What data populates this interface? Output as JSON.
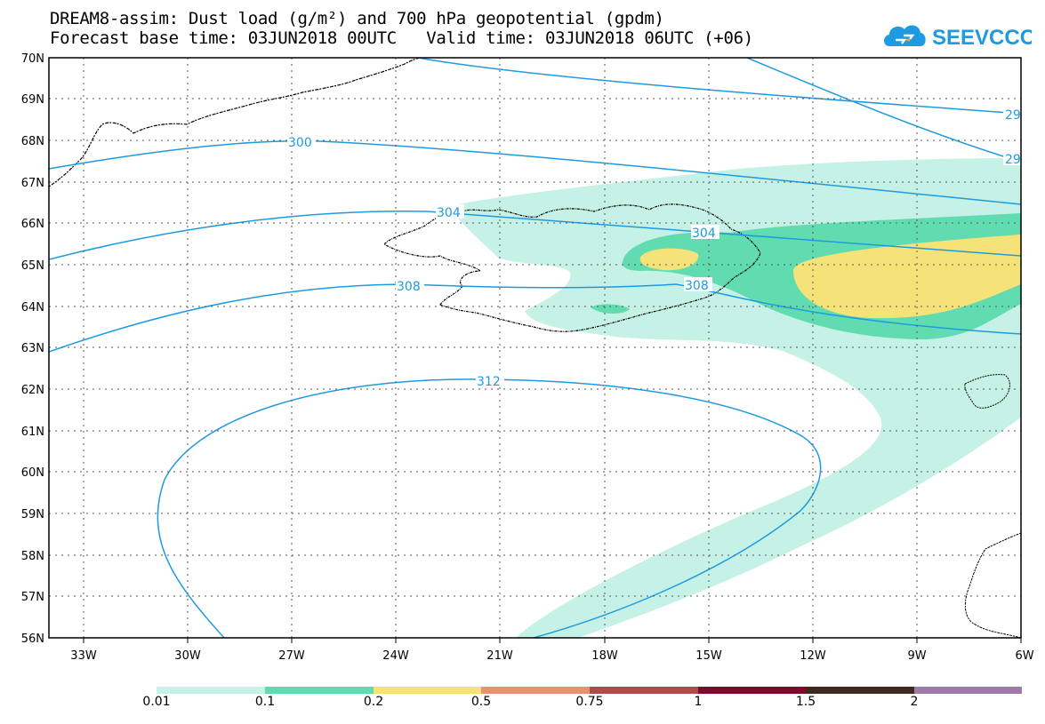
{
  "title_line1": "DREAM8-assim: Dust load (g/m²) and 700 hPa geopotential (gpdm)",
  "title_line2": "Forecast base time: 03JUN2018 00UTC   Valid time: 03JUN2018 06UTC (+06)",
  "logo_text": "SEEVCCC",
  "colors": {
    "contour": "#1e9be0",
    "grid": "#555555",
    "coast": "#000000",
    "bins": [
      "#c5f1e6",
      "#60dcb0",
      "#f5e37a",
      "#e39470",
      "#a5504a",
      "#7e0a2c",
      "#3e2a1c",
      "#9e7aa8"
    ]
  },
  "axes": {
    "lat_labels": [
      "70N",
      "69N",
      "68N",
      "67N",
      "66N",
      "65N",
      "64N",
      "63N",
      "62N",
      "61N",
      "60N",
      "59N",
      "58N",
      "57N",
      "56N"
    ],
    "lon_labels": [
      "33W",
      "30W",
      "27W",
      "24W",
      "21W",
      "18W",
      "15W",
      "12W",
      "9W",
      "6W"
    ]
  },
  "contours": [
    {
      "label": "300"
    },
    {
      "label": "304"
    },
    {
      "label": "304"
    },
    {
      "label": "308"
    },
    {
      "label": "308"
    },
    {
      "label": "312"
    },
    {
      "label": "29"
    },
    {
      "label": "29"
    }
  ],
  "colorbar": {
    "labels": [
      "0.01",
      "0.1",
      "0.2",
      "0.5",
      "0.75",
      "1",
      "1.5",
      "2"
    ]
  }
}
